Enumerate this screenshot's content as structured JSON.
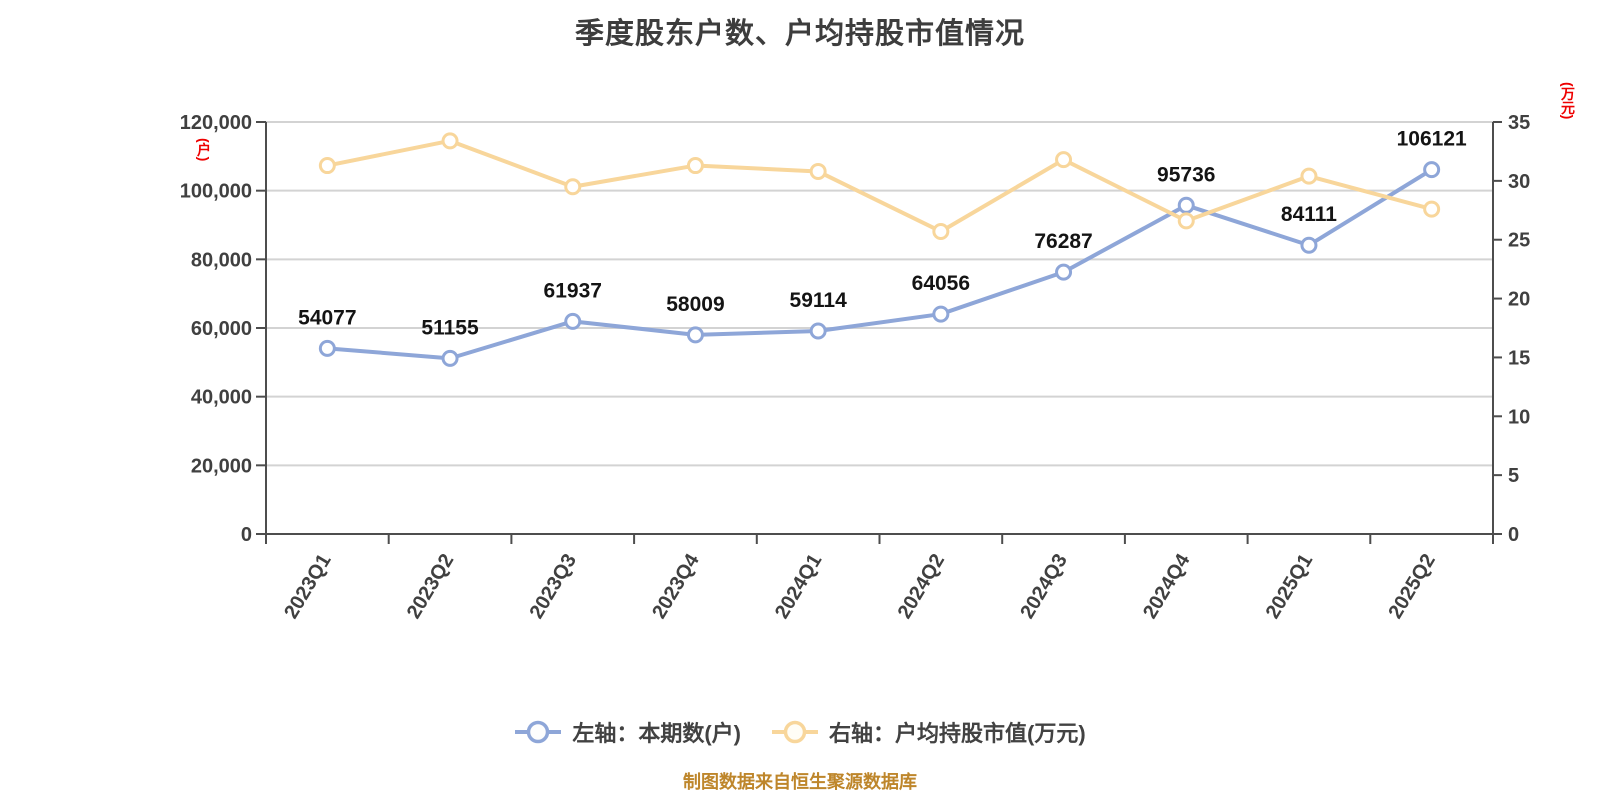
{
  "title": "季度股东户数、户均持股市值情况",
  "footer": "制图数据来自恒生聚源数据库",
  "colors": {
    "shareholders_series": "#8ea6d8",
    "market_value_series": "#f8d69b",
    "unit_label": "#ee0000",
    "footer_text": "#be862b",
    "axis_line": "#4d4d4d",
    "grid_line": "#d3d3d3",
    "tick_text": "#404040",
    "data_label": "#141414"
  },
  "chart_data": {
    "type": "line",
    "title": "季度股东户数、户均持股市值情况",
    "categories": [
      "2023Q1",
      "2023Q2",
      "2023Q3",
      "2023Q4",
      "2024Q1",
      "2024Q2",
      "2024Q3",
      "2024Q4",
      "2025Q1",
      "2025Q2"
    ],
    "series": [
      {
        "name": "左轴：本期数(户)",
        "axis": "left",
        "color": "#8ea6d8",
        "values": [
          54077,
          51155,
          61937,
          58009,
          59114,
          64056,
          76287,
          95736,
          84111,
          106121
        ],
        "data_labels_shown": true
      },
      {
        "name": "右轴：户均持股市值(万元)",
        "axis": "right",
        "color": "#f8d69b",
        "values": [
          31.3,
          33.4,
          29.5,
          31.3,
          30.8,
          25.7,
          31.8,
          26.6,
          30.4,
          27.6
        ],
        "data_labels_shown": false
      }
    ],
    "left_axis": {
      "unit": "(户)",
      "range": [
        0,
        120000
      ],
      "tick_labels": [
        "0",
        "20,000",
        "40,000",
        "60,000",
        "80,000",
        "100,000",
        "120,000"
      ]
    },
    "right_axis": {
      "unit": "(万元)",
      "range": [
        0,
        35
      ],
      "tick_labels": [
        "0",
        "5",
        "10",
        "15",
        "20",
        "25",
        "30",
        "35"
      ]
    },
    "grid": true,
    "legend_position": "bottom"
  }
}
